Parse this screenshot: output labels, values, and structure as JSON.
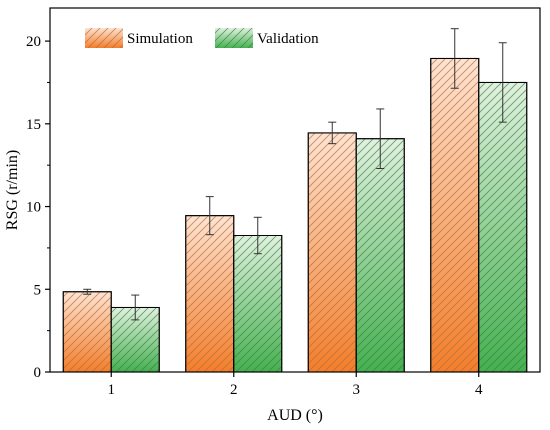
{
  "chart_data": {
    "type": "bar",
    "categories": [
      "1",
      "2",
      "3",
      "4"
    ],
    "series": [
      {
        "name": "Simulation",
        "values": [
          4.85,
          9.45,
          14.45,
          18.95
        ],
        "errors": [
          0.15,
          1.15,
          0.65,
          1.8
        ],
        "color_top": "#fde3d2",
        "color_bottom": "#f47e2a",
        "hatch": "#b06a3a"
      },
      {
        "name": "Validation",
        "values": [
          3.9,
          8.25,
          14.1,
          17.5
        ],
        "errors": [
          0.75,
          1.1,
          1.8,
          2.4
        ],
        "color_top": "#e1f1df",
        "color_bottom": "#44b14f",
        "hatch": "#3d7a45"
      }
    ],
    "xlabel": "AUD (°)",
    "ylabel": "RSG (r/min)",
    "ylim": [
      0,
      22
    ],
    "yticks": [
      "0",
      "5",
      "10",
      "15",
      "20"
    ],
    "grid": false,
    "legend_position": "top-left"
  }
}
